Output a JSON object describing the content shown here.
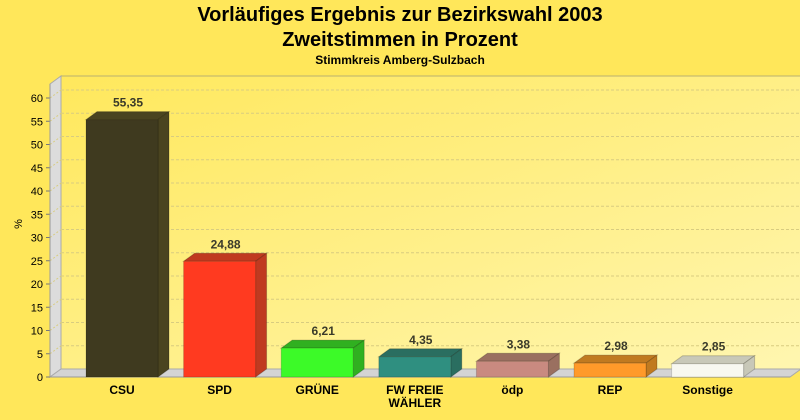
{
  "chart_data": {
    "type": "bar",
    "title": "Vorläufiges Ergebnis zur Bezirkswahl 2003",
    "subtitle": "Zweitstimmen in Prozent",
    "subtitle2": "Stimmkreis Amberg-Sulzbach",
    "ylabel": "%",
    "xlabel": "",
    "ylim": [
      0,
      60
    ],
    "yticks": [
      "0",
      "5",
      "10",
      "15",
      "20",
      "25",
      "30",
      "35",
      "40",
      "45",
      "50",
      "55",
      "60"
    ],
    "grid": true,
    "style": "3d",
    "categories": [
      "CSU",
      "SPD",
      "GRÜNE",
      "FW FREIE WÄHLER",
      "ödp",
      "REP",
      "Sonstige"
    ],
    "category_lines": [
      [
        "CSU"
      ],
      [
        "SPD"
      ],
      [
        "GRÜNE"
      ],
      [
        "FW FREIE",
        "WÄHLER"
      ],
      [
        "ödp"
      ],
      [
        "REP"
      ],
      [
        "Sonstige"
      ]
    ],
    "values": [
      55.35,
      24.88,
      6.21,
      4.35,
      3.38,
      2.98,
      2.85
    ],
    "value_labels": [
      "55,35",
      "24,88",
      "6,21",
      "4,35",
      "3,38",
      "2,98",
      "2,85"
    ],
    "colors": [
      "#3f3a1f",
      "#ff3a20",
      "#3cfa28",
      "#2f8f80",
      "#c98a80",
      "#ff9a2a",
      "#f8f8f0"
    ],
    "side_colors": [
      "#4a4420",
      "#c03a20",
      "#30b020",
      "#2a6e60",
      "#9a7060",
      "#c07a20",
      "#c8c8b8"
    ],
    "background": "#ffe75a"
  }
}
